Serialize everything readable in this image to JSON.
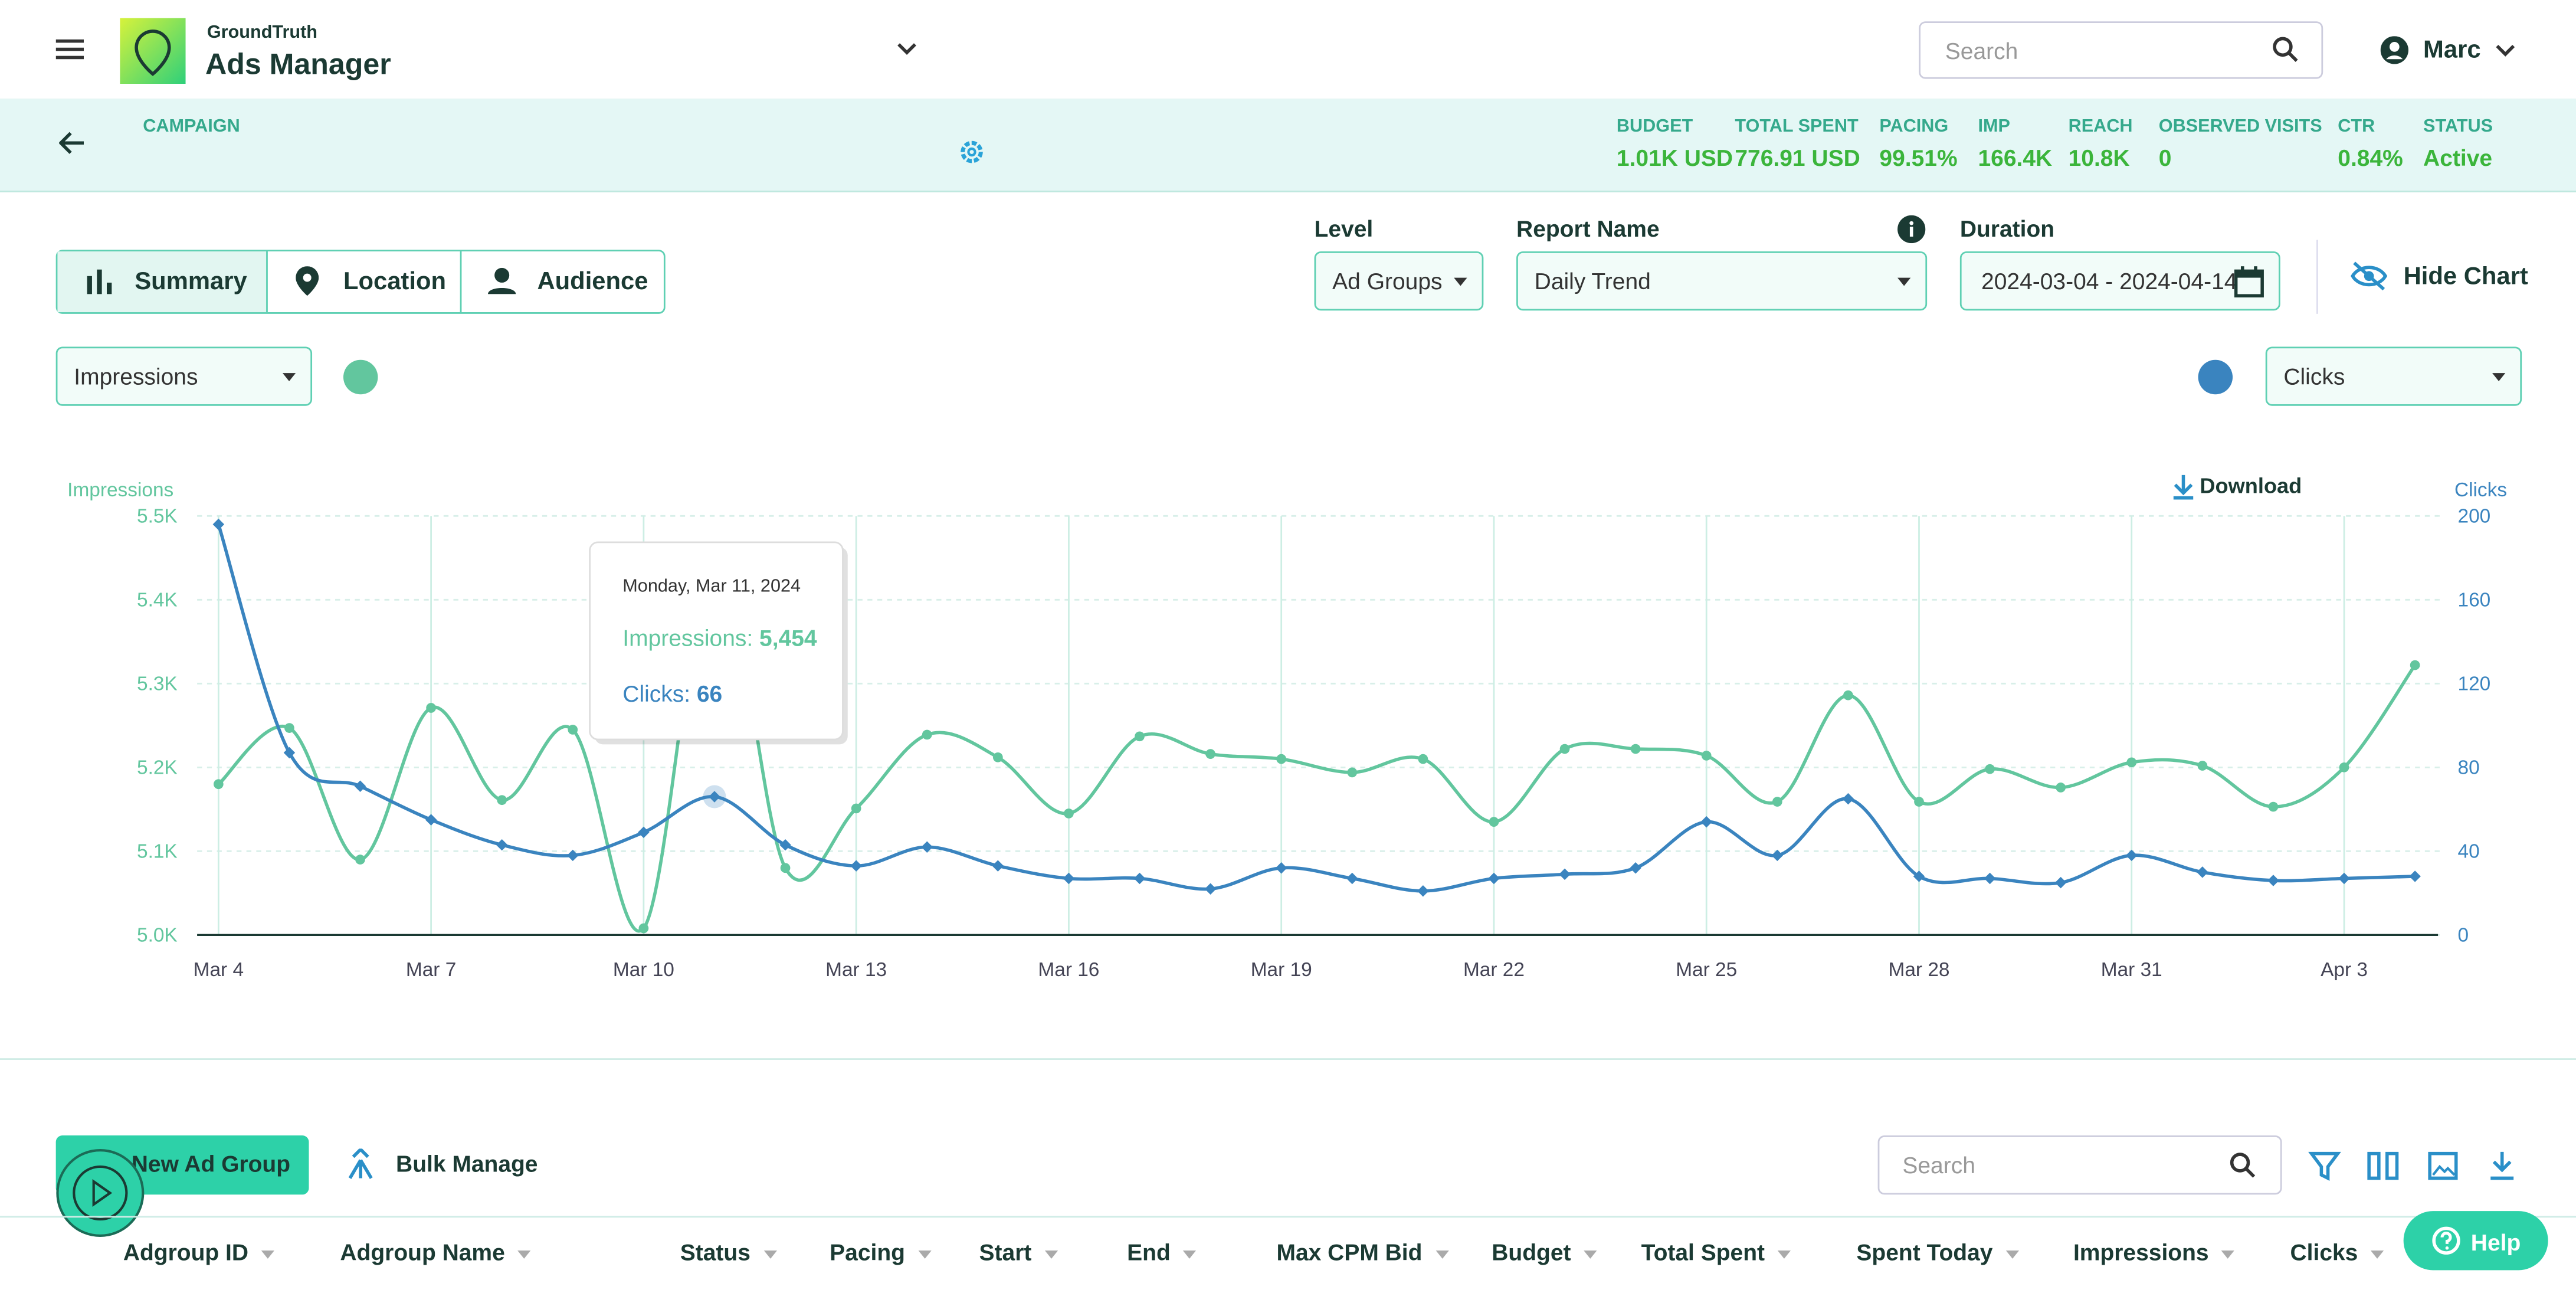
{
  "header": {
    "brand": "GroundTruth",
    "app": "Ads Manager",
    "search_placeholder": "Search",
    "user": "Marc"
  },
  "campaign": {
    "label": "CAMPAIGN",
    "stats": [
      {
        "label": "BUDGET",
        "value": "1.01K USD"
      },
      {
        "label": "TOTAL SPENT",
        "value": "776.91 USD"
      },
      {
        "label": "PACING",
        "value": "99.51%"
      },
      {
        "label": "IMP",
        "value": "166.4K"
      },
      {
        "label": "REACH",
        "value": "10.8K"
      },
      {
        "label": "OBSERVED VISITS",
        "value": "0"
      },
      {
        "label": "CTR",
        "value": "0.84%"
      },
      {
        "label": "STATUS",
        "value": "Active"
      }
    ]
  },
  "tabs": [
    "Summary",
    "Location",
    "Audience"
  ],
  "filters": {
    "level": {
      "label": "Level",
      "value": "Ad Groups"
    },
    "report": {
      "label": "Report Name",
      "value": "Daily Trend"
    },
    "duration": {
      "label": "Duration",
      "value": "2024-03-04 - 2024-04-14"
    },
    "hide_chart": "Hide Chart"
  },
  "metric_left": "Impressions",
  "metric_right": "Clicks",
  "download": "Download",
  "chart_data": {
    "type": "line",
    "y_label": "Impressions",
    "y2_label": "Clicks",
    "categories": [
      "Mar 4",
      null,
      null,
      "Mar 7",
      null,
      null,
      "Mar 10",
      null,
      null,
      "Mar 13",
      null,
      null,
      "Mar 16",
      null,
      null,
      "Mar 19",
      null,
      null,
      "Mar 22",
      null,
      null,
      "Mar 25",
      null,
      null,
      "Mar 28",
      null,
      null,
      "Mar 31",
      null,
      null,
      "Apr 3",
      null
    ],
    "series": [
      {
        "name": "Impressions",
        "color": "#62c69e",
        "values": [
          5180,
          5247,
          5090,
          5271,
          5161,
          5245,
          5008,
          5454,
          5080,
          5151,
          5239,
          5212,
          5145,
          5237,
          5216,
          5210,
          5194,
          5210,
          5135,
          5222,
          5222,
          5214,
          5159,
          5286,
          5159,
          5198,
          5176,
          5206,
          5202,
          5153,
          5200,
          5322
        ]
      },
      {
        "name": "Clicks",
        "color": "#3a84bf",
        "axis": "y2",
        "values": [
          196,
          87,
          71,
          55,
          43,
          38,
          49,
          66,
          43,
          33,
          42,
          33,
          27,
          27,
          22,
          32,
          27,
          21,
          27,
          29,
          32,
          54,
          38,
          65,
          28,
          27,
          25,
          38,
          30,
          26,
          27,
          28
        ]
      }
    ],
    "ylim": [
      5000,
      5500
    ],
    "yticks": [
      {
        "value": 5000,
        "label": "5.0K"
      },
      {
        "value": 5100,
        "label": "5.1K"
      },
      {
        "value": 5200,
        "label": "5.2K"
      },
      {
        "value": 5300,
        "label": "5.3K"
      },
      {
        "value": 5400,
        "label": "5.4K"
      },
      {
        "value": 5500,
        "label": "5.5K"
      }
    ],
    "y2lim": [
      0,
      200
    ],
    "y2ticks": [
      0,
      40,
      80,
      120,
      160,
      200
    ],
    "grid": true,
    "tooltip": {
      "title": "Monday, Mar 11, 2024",
      "lines": [
        {
          "label": "Impressions:",
          "value": "5,454"
        },
        {
          "label": "Clicks:",
          "value": "66"
        }
      ]
    }
  },
  "actions": {
    "new": "New Ad Group",
    "bulk": "Bulk Manage",
    "search_placeholder": "Search"
  },
  "table": {
    "columns": [
      "Adgroup ID",
      "Adgroup Name",
      "Status",
      "Pacing",
      "Start",
      "End",
      "Max CPM Bid",
      "Budget",
      "Total Spent",
      "Spent Today",
      "Impressions",
      "Clicks"
    ]
  },
  "help": "Help"
}
